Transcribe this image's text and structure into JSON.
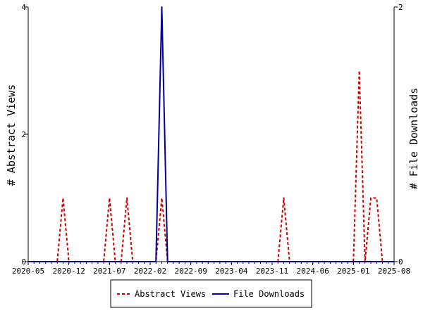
{
  "chart_data": {
    "type": "line",
    "x_tick_labels": [
      "2020-05",
      "2020-12",
      "2021-07",
      "2022-02",
      "2022-09",
      "2023-04",
      "2023-11",
      "2024-06",
      "2025-01",
      "2025-08"
    ],
    "y_left_label": "# Abstract Views",
    "y_right_label": "# File Downloads",
    "y_left_ticks": [
      "0",
      "2",
      "4"
    ],
    "y_right_ticks": [
      "0",
      "2"
    ],
    "y_left_range": [
      0,
      4
    ],
    "y_right_range": [
      0,
      2
    ],
    "x_range": [
      "2020-05",
      "2025-08"
    ],
    "legend_position": "bottom-center",
    "grid": false,
    "series": [
      {
        "name": "Abstract Views",
        "axis": "left",
        "color": "#cc0000",
        "dash": "dashed",
        "points": [
          [
            "2020-05",
            0
          ],
          [
            "2020-10",
            0
          ],
          [
            "2020-11",
            1
          ],
          [
            "2020-12",
            0
          ],
          [
            "2021-06",
            0
          ],
          [
            "2021-07",
            1
          ],
          [
            "2021-08",
            0
          ],
          [
            "2021-09",
            0
          ],
          [
            "2021-10",
            1
          ],
          [
            "2021-11",
            0
          ],
          [
            "2022-03",
            0
          ],
          [
            "2022-04",
            1
          ],
          [
            "2022-05",
            0
          ],
          [
            "2023-12",
            0
          ],
          [
            "2024-01",
            1
          ],
          [
            "2024-02",
            0
          ],
          [
            "2025-01",
            0
          ],
          [
            "2025-02",
            3
          ],
          [
            "2025-03",
            0
          ],
          [
            "2025-04",
            1
          ],
          [
            "2025-05",
            1
          ],
          [
            "2025-06",
            0
          ],
          [
            "2025-08",
            0
          ]
        ]
      },
      {
        "name": "File Downloads",
        "axis": "right",
        "color": "#000099",
        "dash": "solid",
        "points": [
          [
            "2020-05",
            0
          ],
          [
            "2022-03",
            0
          ],
          [
            "2022-04",
            2
          ],
          [
            "2022-05",
            0
          ],
          [
            "2025-08",
            0
          ]
        ]
      }
    ]
  }
}
